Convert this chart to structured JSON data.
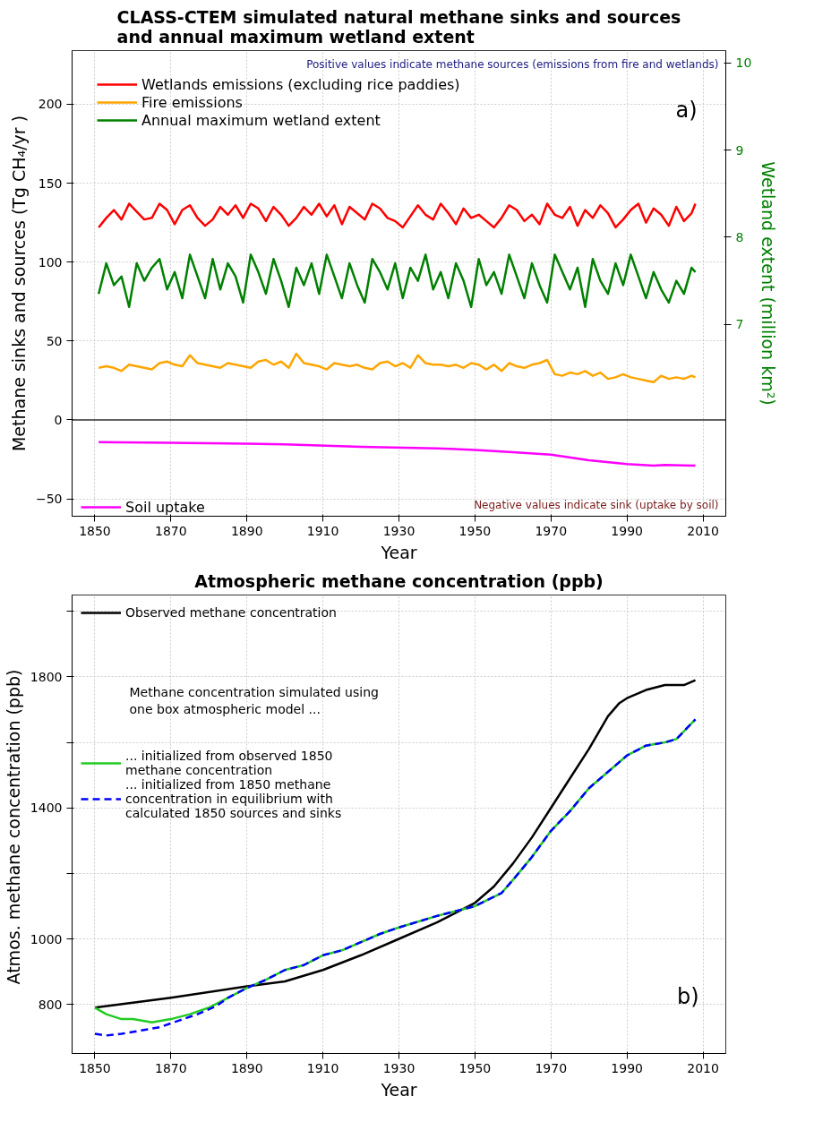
{
  "chart_data": [
    {
      "type": "line",
      "title": "CLASS-CTEM simulated natural methane sinks and sources\nand annual maximum wetland extent",
      "xlabel": "Year",
      "ylabel": "Methane sinks and sources (Tg CH₄/yr )",
      "y2label": "Wetland extent (million km²)",
      "x": [
        1851,
        1853,
        1855,
        1857,
        1859,
        1861,
        1863,
        1865,
        1867,
        1869,
        1871,
        1873,
        1875,
        1877,
        1879,
        1881,
        1883,
        1885,
        1887,
        1889,
        1891,
        1893,
        1895,
        1897,
        1899,
        1901,
        1903,
        1905,
        1907,
        1909,
        1911,
        1913,
        1915,
        1917,
        1919,
        1921,
        1923,
        1925,
        1927,
        1929,
        1931,
        1933,
        1935,
        1937,
        1939,
        1941,
        1943,
        1945,
        1947,
        1949,
        1951,
        1953,
        1955,
        1957,
        1959,
        1961,
        1963,
        1965,
        1967,
        1969,
        1971,
        1973,
        1975,
        1977,
        1979,
        1981,
        1983,
        1985,
        1987,
        1989,
        1991,
        1993,
        1995,
        1997,
        1999,
        2001,
        2003,
        2005,
        2007,
        2008
      ],
      "series": [
        {
          "name": "Wetlands emissions (excluding rice paddies)",
          "color": "#ff0000",
          "values": [
            122,
            128,
            133,
            127,
            137,
            132,
            127,
            128,
            137,
            133,
            124,
            133,
            136,
            128,
            123,
            127,
            135,
            130,
            136,
            128,
            137,
            134,
            126,
            135,
            130,
            123,
            128,
            135,
            130,
            137,
            129,
            136,
            124,
            135,
            131,
            127,
            137,
            134,
            128,
            126,
            122,
            129,
            136,
            130,
            127,
            137,
            131,
            124,
            134,
            128,
            130,
            126,
            122,
            128,
            136,
            133,
            126,
            130,
            124,
            137,
            130,
            128,
            135,
            123,
            133,
            128,
            136,
            131,
            122,
            127,
            133,
            137,
            125,
            134,
            130,
            123,
            135,
            126,
            131,
            137
          ]
        },
        {
          "name": "Fire emissions",
          "color": "#ffa500",
          "values": [
            33,
            34,
            33,
            31,
            35,
            34,
            33,
            32,
            36,
            37,
            35,
            34,
            41,
            36,
            35,
            34,
            33,
            36,
            35,
            34,
            33,
            37,
            38,
            35,
            37,
            33,
            42,
            36,
            35,
            34,
            32,
            36,
            35,
            34,
            35,
            33,
            32,
            36,
            37,
            34,
            36,
            33,
            41,
            36,
            35,
            35,
            34,
            35,
            33,
            36,
            35,
            32,
            35,
            31,
            36,
            34,
            33,
            35,
            36,
            38,
            29,
            28,
            30,
            29,
            31,
            28,
            30,
            26,
            27,
            29,
            27,
            26,
            25,
            24,
            28,
            26,
            27,
            26,
            28,
            27
          ]
        },
        {
          "name": "Annual maximum wetland extent",
          "color": "#008000",
          "axis": "y2",
          "values": [
            7.35,
            7.7,
            7.45,
            7.55,
            7.2,
            7.7,
            7.5,
            7.65,
            7.75,
            7.4,
            7.6,
            7.3,
            7.8,
            7.55,
            7.3,
            7.75,
            7.4,
            7.7,
            7.55,
            7.25,
            7.8,
            7.6,
            7.35,
            7.75,
            7.5,
            7.2,
            7.65,
            7.45,
            7.7,
            7.35,
            7.8,
            7.55,
            7.3,
            7.7,
            7.45,
            7.25,
            7.75,
            7.6,
            7.4,
            7.7,
            7.3,
            7.65,
            7.5,
            7.8,
            7.4,
            7.6,
            7.3,
            7.7,
            7.5,
            7.2,
            7.75,
            7.45,
            7.6,
            7.35,
            7.8,
            7.55,
            7.3,
            7.7,
            7.45,
            7.25,
            7.8,
            7.6,
            7.4,
            7.65,
            7.2,
            7.75,
            7.5,
            7.35,
            7.7,
            7.45,
            7.8,
            7.55,
            7.3,
            7.6,
            7.4,
            7.25,
            7.5,
            7.35,
            7.65,
            7.6
          ]
        },
        {
          "name": "Soil uptake",
          "color": "#ff00ff",
          "x": [
            1851,
            1870,
            1890,
            1900,
            1920,
            1940,
            1950,
            1960,
            1970,
            1980,
            1990,
            1997,
            2000,
            2008
          ],
          "values": [
            -14,
            -14.5,
            -15,
            -15.5,
            -17,
            -18,
            -19,
            -20.5,
            -22,
            -25.5,
            -28,
            -29,
            -28.5,
            -29
          ]
        }
      ],
      "xlim": [
        1844,
        2016
      ],
      "xticks": [
        1850,
        1870,
        1890,
        1910,
        1930,
        1950,
        1970,
        1990,
        2010
      ],
      "ylim": [
        -61,
        234
      ],
      "yticks": [
        -50,
        0,
        50,
        100,
        150,
        200
      ],
      "y2lim": [
        4.8,
        10.14
      ],
      "y2ticks": [
        7,
        8,
        9,
        10
      ],
      "ref_lines": [
        {
          "axis": "y",
          "value": 0,
          "label": null,
          "color": "#333333"
        }
      ],
      "annotations": [
        "Positive values indicate methane sources (emissions from fire and wetlands)",
        "Negative values indicate sink (uptake by soil)",
        "a)"
      ],
      "grid": true,
      "legend": "left"
    },
    {
      "type": "line",
      "title": "Atmospheric methane concentration (ppb)",
      "xlabel": "Year",
      "ylabel": "Atmos. methane  concentration (ppb)",
      "series": [
        {
          "name": "Observed methane concentration",
          "color": "#000000",
          "x": [
            1850,
            1870,
            1890,
            1900,
            1910,
            1920,
            1930,
            1940,
            1950,
            1955,
            1960,
            1965,
            1970,
            1975,
            1980,
            1985,
            1988,
            1990,
            1995,
            2000,
            2005,
            2008
          ],
          "values": [
            790,
            820,
            855,
            870,
            905,
            950,
            1000,
            1050,
            1110,
            1160,
            1230,
            1310,
            1400,
            1490,
            1580,
            1680,
            1720,
            1735,
            1760,
            1775,
            1775,
            1790
          ]
        },
        {
          "name": "... initialized from observed 1850\nmethane concentration",
          "color": "#22cc22",
          "x": [
            1850,
            1853,
            1857,
            1860,
            1865,
            1870,
            1875,
            1880,
            1885,
            1890,
            1895,
            1900,
            1905,
            1910,
            1915,
            1920,
            1925,
            1930,
            1940,
            1950,
            1957,
            1960,
            1965,
            1970,
            1975,
            1980,
            1985,
            1990,
            1995,
            2000,
            2003,
            2008
          ],
          "values": [
            790,
            770,
            755,
            755,
            745,
            755,
            770,
            790,
            820,
            850,
            875,
            905,
            920,
            950,
            965,
            990,
            1015,
            1035,
            1070,
            1100,
            1140,
            1180,
            1250,
            1330,
            1390,
            1460,
            1510,
            1560,
            1590,
            1600,
            1610,
            1670
          ]
        },
        {
          "name": "... initialized from 1850 methane\nconcentration in equilibrium with\ncalculated 1850 sources and sinks",
          "color": "#0000ff",
          "line_style": "dashed",
          "x": [
            1850,
            1853,
            1857,
            1862,
            1867,
            1872,
            1877,
            1882,
            1885,
            1890,
            1895,
            1900,
            1905,
            1910,
            1915,
            1920,
            1925,
            1930,
            1940,
            1950,
            1957,
            1960,
            1965,
            1970,
            1975,
            1980,
            1985,
            1990,
            1995,
            2000,
            2003,
            2008
          ],
          "values": [
            710,
            705,
            710,
            720,
            730,
            750,
            770,
            795,
            820,
            850,
            875,
            905,
            920,
            950,
            965,
            990,
            1015,
            1035,
            1070,
            1100,
            1140,
            1180,
            1250,
            1330,
            1390,
            1460,
            1510,
            1560,
            1590,
            1600,
            1610,
            1670
          ]
        }
      ],
      "xlim": [
        1844,
        2016
      ],
      "xticks": [
        1850,
        1870,
        1890,
        1910,
        1930,
        1950,
        1970,
        1990,
        2010
      ],
      "ylim": [
        650,
        2050
      ],
      "yticks": [
        800,
        1000,
        {
          "value": 1200,
          "label": null
        },
        1400,
        {
          "value": 1600,
          "label": null
        },
        1800,
        {
          "value": 2000,
          "label": null
        }
      ],
      "annotations": [
        "Methane concentration simulated using\none box atmospheric model ...",
        "b)"
      ],
      "grid": true,
      "legend": "top left"
    }
  ]
}
